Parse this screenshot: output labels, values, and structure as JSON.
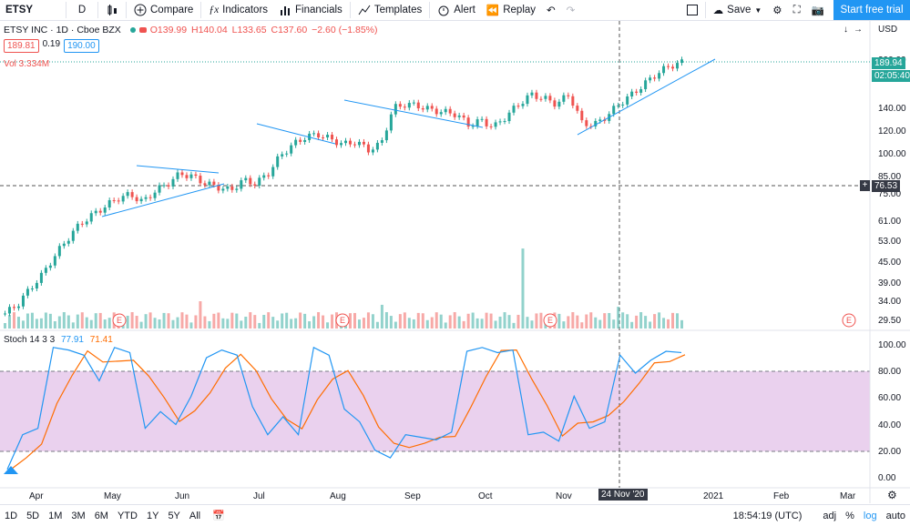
{
  "toolbar": {
    "symbol": "ETSY",
    "interval": "D",
    "compare": "Compare",
    "indicators": "Indicators",
    "financials": "Financials",
    "templates": "Templates",
    "alert": "Alert",
    "replay": "Replay",
    "save": "Save",
    "start_trial": "Start free trial"
  },
  "legend": {
    "title": "ETSY INC · 1D · Cboe BZX",
    "o": "O139.99",
    "h": "H140.04",
    "l": "L133.65",
    "c": "C137.60",
    "chg": "−2.60 (−1.85%)",
    "bid": "189.81",
    "spread": "0.19",
    "ask": "190.00",
    "vol": "Vol  3.334M",
    "stoch": "Stoch 14 3 3",
    "k": "77.91",
    "d": "71.41"
  },
  "right_axis": {
    "currency": "USD",
    "last_price": "189.94",
    "countdown": "02:05:40",
    "crosshair_price": "76.53",
    "ticks": [
      "200.00",
      "140.00",
      "120.00",
      "100.00",
      "85.00",
      "75.00",
      "61.00",
      "53.00",
      "45.00",
      "39.00",
      "34.00",
      "29.50"
    ],
    "stoch_ticks": [
      "100.00",
      "80.00",
      "60.00",
      "40.00",
      "20.00",
      "0.00"
    ]
  },
  "time_axis": {
    "labels": [
      "Apr",
      "May",
      "Jun",
      "Jul",
      "Aug",
      "Sep",
      "Oct",
      "Nov",
      "2021",
      "Feb",
      "Mar"
    ],
    "crosshair_date": "24 Nov '20"
  },
  "bottom": {
    "ranges": [
      "1D",
      "5D",
      "1M",
      "3M",
      "6M",
      "YTD",
      "1Y",
      "5Y",
      "All"
    ],
    "clock": "18:54:19 (UTC)",
    "adj": "adj",
    "pct": "%",
    "log": "log",
    "auto": "auto"
  },
  "colors": {
    "up": "#26a69a",
    "down": "#ef5350",
    "stochK": "#2196f3",
    "stochD": "#ff6d00",
    "band": "#e1bee7",
    "accent": "#2196f3"
  },
  "chart_data": {
    "type": "candlestick",
    "title": "ETSY INC · 1D · Cboe BZX",
    "close_approx": [
      30,
      32,
      36,
      40,
      46,
      52,
      58,
      62,
      66,
      70,
      72,
      68,
      74,
      78,
      84,
      82,
      78,
      76,
      74,
      80,
      78,
      84,
      96,
      104,
      110,
      112,
      108,
      104,
      106,
      100,
      104,
      136,
      140,
      138,
      134,
      132,
      130,
      120,
      124,
      118,
      128,
      140,
      150,
      146,
      140,
      150,
      122,
      120,
      128,
      140,
      150,
      162,
      175,
      185,
      190
    ],
    "stoch_k_approx": [
      3,
      30,
      35,
      98,
      96,
      92,
      72,
      98,
      94,
      35,
      48,
      38,
      60,
      90,
      96,
      92,
      52,
      30,
      44,
      30,
      98,
      92,
      50,
      40,
      18,
      12,
      30,
      28,
      26,
      32,
      95,
      98,
      94,
      96,
      30,
      32,
      25,
      60,
      35,
      40,
      92,
      78,
      88,
      95,
      94
    ],
    "ylim": [
      29.5,
      200
    ],
    "stoch_ylim": [
      0,
      100
    ]
  }
}
